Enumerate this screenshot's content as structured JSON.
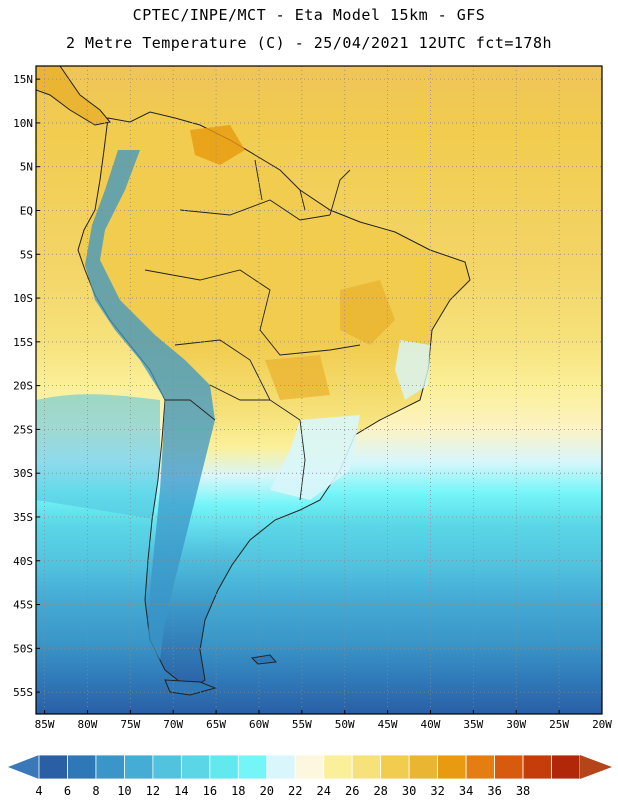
{
  "header": {
    "line1": "CPTEC/INPE/MCT -  Eta Model 15km - GFS",
    "line2": "2 Metre Temperature (C) - 25/04/2021 12UTC fct=178h"
  },
  "map": {
    "lat_labels": [
      "15N",
      "10N",
      "5N",
      "EQ",
      "5S",
      "10S",
      "15S",
      "20S",
      "25S",
      "30S",
      "35S",
      "40S",
      "45S",
      "50S",
      "55S"
    ],
    "lon_labels": [
      "85W",
      "80W",
      "75W",
      "70W",
      "65W",
      "60W",
      "55W",
      "50W",
      "45W",
      "40W",
      "35W",
      "30W",
      "25W",
      "20W"
    ],
    "lat_values": [
      15,
      10,
      5,
      0,
      -5,
      -10,
      -15,
      -20,
      -25,
      -30,
      -35,
      -40,
      -45,
      -50,
      -55
    ],
    "lon_values": [
      -85,
      -80,
      -75,
      -70,
      -65,
      -60,
      -55,
      -50,
      -45,
      -40,
      -35,
      -30,
      -25,
      -20
    ],
    "lat_range": [
      -57.5,
      16.5
    ],
    "lon_range": [
      -86,
      -20
    ]
  },
  "legend": {
    "labels": [
      "4",
      "6",
      "8",
      "10",
      "12",
      "14",
      "16",
      "18",
      "20",
      "22",
      "24",
      "26",
      "28",
      "30",
      "32",
      "34",
      "36",
      "38"
    ],
    "colors": [
      "#2a5fa5",
      "#2f78b8",
      "#3a96c8",
      "#45acd6",
      "#52c3df",
      "#5ad6e6",
      "#62e8ef",
      "#74f5f8",
      "#d8f6fb",
      "#fdf7df",
      "#fbf09a",
      "#f6e17a",
      "#f1cc4e",
      "#ebb534",
      "#e89a10",
      "#e47e12",
      "#d85a0e",
      "#c43d0b",
      "#b02808"
    ],
    "low_color": "#3a78b8",
    "high_color": "#b4441a"
  }
}
